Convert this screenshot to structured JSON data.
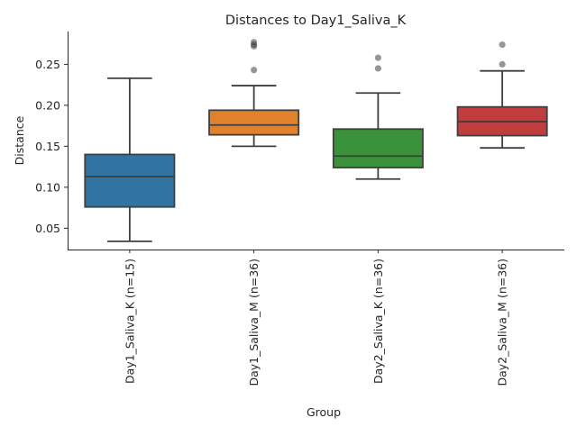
{
  "chart_data": {
    "type": "boxplot",
    "title": "Distances to Day1_Saliva_K",
    "xlabel": "Group",
    "ylabel": "Distance",
    "ylim": [
      0.024,
      0.29
    ],
    "yticks": [
      0.05,
      0.1,
      0.15,
      0.2,
      0.25
    ],
    "ytick_labels": [
      "0.05",
      "0.10",
      "0.15",
      "0.20",
      "0.25"
    ],
    "grid": false,
    "categories": [
      "Day1_Saliva_K (n=15)",
      "Day1_Saliva_M (n=36)",
      "Day2_Saliva_K (n=36)",
      "Day2_Saliva_M (n=36)"
    ],
    "boxes": [
      {
        "color": "#3274a1",
        "whislo": 0.034,
        "q1": 0.076,
        "median": 0.113,
        "q3": 0.14,
        "whishi": 0.233,
        "fliers": []
      },
      {
        "color": "#e1812c",
        "whislo": 0.15,
        "q1": 0.164,
        "median": 0.176,
        "q3": 0.194,
        "whishi": 0.224,
        "fliers": [
          0.243,
          0.272,
          0.274,
          0.277
        ]
      },
      {
        "color": "#3a923a",
        "whislo": 0.11,
        "q1": 0.124,
        "median": 0.138,
        "q3": 0.171,
        "whishi": 0.215,
        "fliers": [
          0.245,
          0.258
        ]
      },
      {
        "color": "#c03d3e",
        "whislo": 0.148,
        "q1": 0.163,
        "median": 0.18,
        "q3": 0.198,
        "whishi": 0.242,
        "fliers": [
          0.25,
          0.274
        ]
      }
    ]
  }
}
